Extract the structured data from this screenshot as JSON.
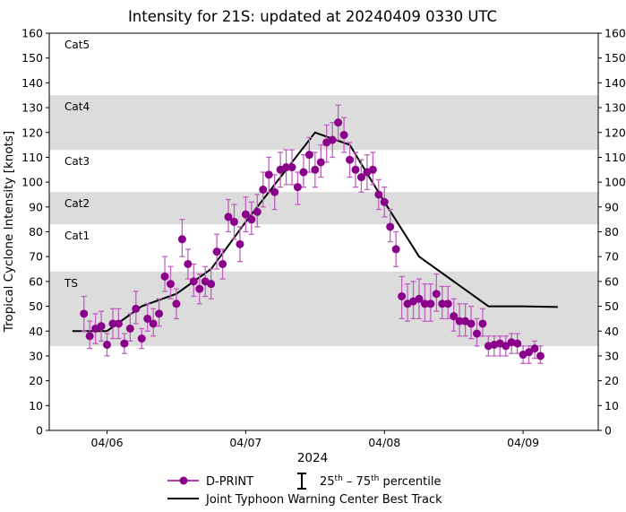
{
  "chart_data": {
    "type": "scatter",
    "title": "Intensity for 21S: updated at 20240409 0330 UTC",
    "xlabel": "2024",
    "ylabel": "Tropical Cyclone Intensity [knots]",
    "ylim": [
      0,
      160
    ],
    "yticks": [
      0,
      10,
      20,
      30,
      40,
      50,
      60,
      70,
      80,
      90,
      100,
      110,
      120,
      130,
      140,
      150,
      160
    ],
    "xlim": [
      "2024-04-05T14:00Z",
      "2024-04-09T13:00Z"
    ],
    "xticks": [
      {
        "t": "2024-04-06T00:00Z",
        "label": "04/06"
      },
      {
        "t": "2024-04-07T00:00Z",
        "label": "04/07"
      },
      {
        "t": "2024-04-08T00:00Z",
        "label": "04/08"
      },
      {
        "t": "2024-04-09T00:00Z",
        "label": "04/09"
      }
    ],
    "grid": false,
    "categories_bands": [
      {
        "label": "TS",
        "low": 34,
        "high": 64,
        "shaded": true
      },
      {
        "label": "Cat1",
        "low": 64,
        "high": 83,
        "shaded": false
      },
      {
        "label": "Cat2",
        "low": 83,
        "high": 96,
        "shaded": true
      },
      {
        "label": "Cat3",
        "low": 96,
        "high": 113,
        "shaded": false
      },
      {
        "label": "Cat4",
        "low": 113,
        "high": 135,
        "shaded": true
      },
      {
        "label": "Cat5",
        "low": 135,
        "high": 160,
        "shaded": false
      }
    ],
    "dprint": {
      "name": "D-PRINT",
      "color": "#8b008b",
      "errorbar_color": "#c060c0",
      "start": "2024-04-05T20:00Z",
      "times": [
        "04/05 20Z",
        "04/05 21Z",
        "04/05 22Z",
        "04/05 23Z",
        "04/06 00Z",
        "04/06 01Z",
        "04/06 02Z",
        "04/06 03Z",
        "04/06 04Z",
        "04/06 05Z",
        "04/06 06Z",
        "04/06 07Z",
        "04/06 08Z",
        "04/06 09Z",
        "04/06 10Z",
        "04/06 11Z",
        "04/06 12Z",
        "04/06 13Z",
        "04/06 14Z",
        "04/06 15Z",
        "04/06 16Z",
        "04/06 17Z",
        "04/06 18Z",
        "04/06 19Z",
        "04/06 20Z",
        "04/06 21Z",
        "04/06 22Z",
        "04/06 23Z",
        "04/07 00Z",
        "04/07 01Z",
        "04/07 02Z",
        "04/07 03Z",
        "04/07 04Z",
        "04/07 05Z",
        "04/07 06Z",
        "04/07 07Z",
        "04/07 08Z",
        "04/07 09Z",
        "04/07 10Z",
        "04/07 11Z",
        "04/07 12Z",
        "04/07 13Z",
        "04/07 14Z",
        "04/07 15Z",
        "04/07 16Z",
        "04/07 17Z",
        "04/07 18Z",
        "04/07 19Z",
        "04/07 20Z",
        "04/07 21Z",
        "04/07 22Z",
        "04/07 23Z",
        "04/08 00Z",
        "04/08 01Z",
        "04/08 02Z",
        "04/08 03Z",
        "04/08 04Z",
        "04/08 05Z",
        "04/08 06Z",
        "04/08 07Z",
        "04/08 08Z",
        "04/08 09Z",
        "04/08 10Z",
        "04/08 11Z",
        "04/08 12Z",
        "04/08 13Z",
        "04/08 14Z",
        "04/08 15Z",
        "04/08 16Z",
        "04/08 17Z",
        "04/08 18Z",
        "04/08 19Z",
        "04/08 20Z",
        "04/08 21Z",
        "04/08 22Z",
        "04/08 23Z",
        "04/09 00Z",
        "04/09 01Z",
        "04/09 02Z",
        "04/09 03Z"
      ],
      "values": [
        47,
        38,
        41,
        42,
        34.5,
        43,
        43,
        35,
        41,
        49,
        37,
        45,
        43,
        47,
        62,
        59,
        51,
        77,
        67,
        60,
        57,
        60,
        59,
        72,
        67,
        86,
        84,
        75,
        87,
        85,
        88,
        97,
        103,
        96,
        105,
        106,
        106,
        98,
        104,
        111,
        105,
        108,
        116,
        117,
        124,
        119,
        109,
        105,
        102,
        104,
        105,
        95,
        92,
        82,
        73,
        54,
        51,
        52,
        53,
        51,
        51,
        55,
        51,
        51,
        46,
        44,
        44,
        43,
        39,
        43,
        34,
        34.5,
        35,
        34,
        35.5,
        35,
        30.5,
        31.5,
        33,
        30
      ],
      "p25": [
        40,
        33,
        35,
        36,
        30,
        37,
        37,
        31,
        36,
        43,
        33,
        40,
        38,
        42,
        56,
        53,
        45,
        70,
        61,
        54,
        51,
        54,
        53,
        65,
        61,
        80,
        77,
        68,
        80,
        79,
        82,
        90,
        96,
        89,
        98,
        99,
        99,
        91,
        98,
        104,
        98,
        102,
        108,
        110,
        117,
        112,
        102,
        98,
        96,
        97,
        99,
        89,
        86,
        76,
        66,
        45,
        44,
        45,
        45,
        44,
        44,
        48,
        45,
        45,
        40,
        38,
        38,
        37,
        34,
        38,
        30,
        30,
        30,
        30,
        31,
        31,
        27,
        27,
        29,
        27
      ],
      "p75": [
        54,
        44,
        47,
        48,
        39,
        49,
        49,
        39,
        47,
        56,
        41,
        51,
        49,
        53,
        70,
        66,
        57,
        85,
        73,
        67,
        63,
        66,
        65,
        79,
        73,
        93,
        91,
        82,
        94,
        92,
        95,
        104,
        110,
        103,
        112,
        113,
        113,
        104,
        111,
        118,
        112,
        115,
        123,
        124,
        131,
        126,
        116,
        112,
        109,
        111,
        112,
        101,
        98,
        89,
        80,
        62,
        59,
        60,
        61,
        59,
        59,
        63,
        58,
        58,
        53,
        51,
        51,
        50,
        45,
        49,
        38,
        38,
        38,
        38,
        39,
        39,
        34,
        34,
        36,
        34
      ]
    },
    "best_track": {
      "name": "Joint Typhoon Warning Center Best Track",
      "color": "#000000",
      "times": [
        "04/05 18Z",
        "04/06 00Z",
        "04/06 06Z",
        "04/06 12Z",
        "04/06 18Z",
        "04/07 00Z",
        "04/07 06Z",
        "04/07 12Z",
        "04/07 18Z",
        "04/08 00Z",
        "04/08 06Z",
        "04/08 12Z",
        "04/08 18Z",
        "04/09 00Z",
        "04/09 06Z"
      ],
      "values": [
        40,
        40,
        50,
        55,
        65,
        84,
        102,
        120,
        115,
        92,
        70,
        60,
        50,
        50,
        49.7
      ]
    },
    "legend": {
      "placement": "bottom",
      "dprint_label": "D-PRINT",
      "percentile_label_a": "25",
      "percentile_sup_a": "th",
      "percentile_dash": " – ",
      "percentile_label_b": "75",
      "percentile_sup_b": "th",
      "percentile_tail": " percentile",
      "best_track_label": "Joint Typhoon Warning Center Best Track"
    }
  }
}
